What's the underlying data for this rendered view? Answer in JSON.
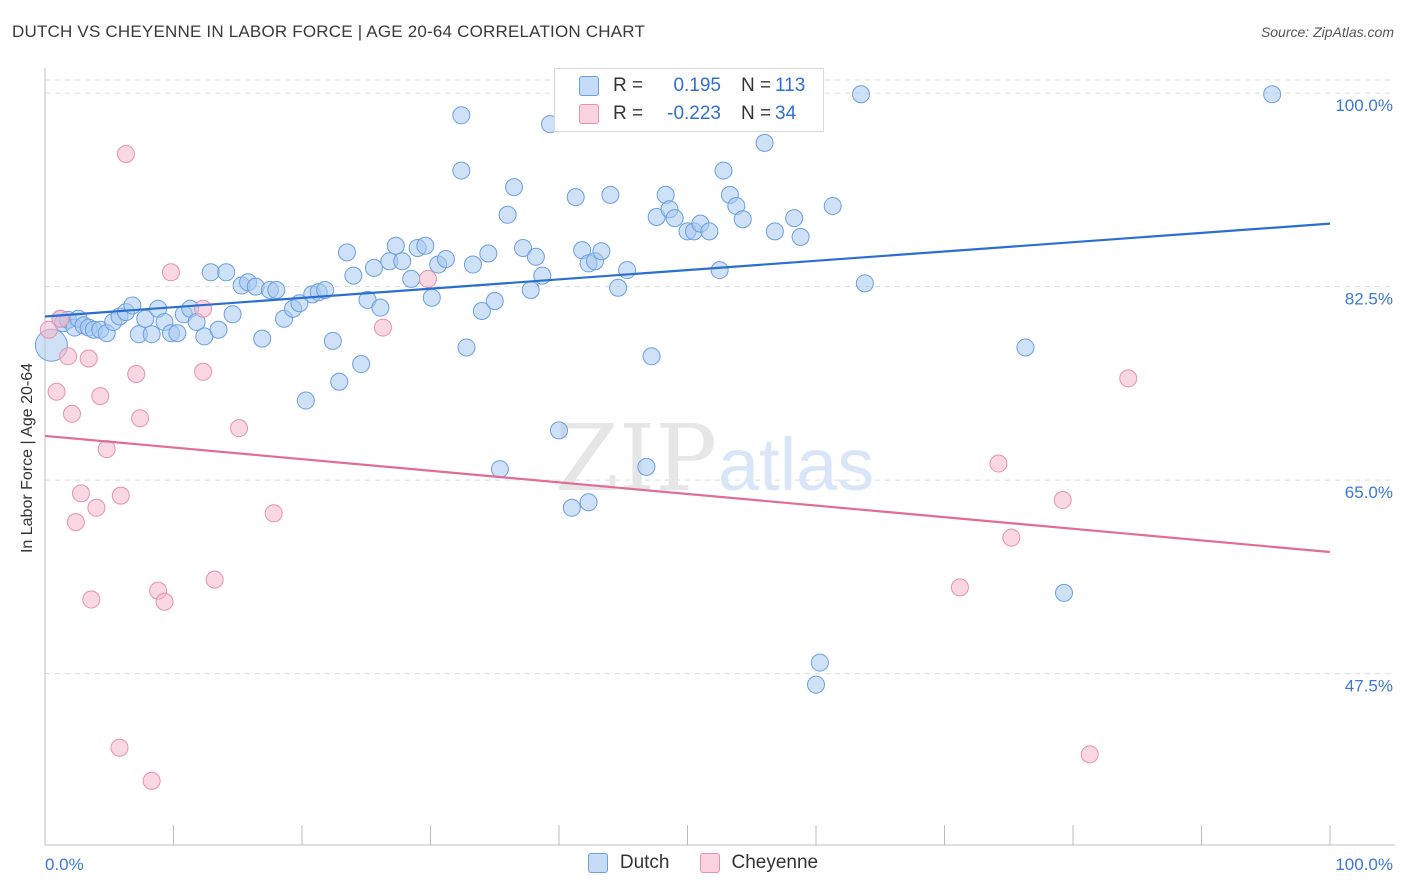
{
  "title": "DUTCH VS CHEYENNE IN LABOR FORCE | AGE 20-64 CORRELATION CHART",
  "source": "Source: ZipAtlas.com",
  "watermark": {
    "zip": "ZIP",
    "atlas": "atlas"
  },
  "legend_top": [
    {
      "r_label": "R =",
      "r_value": "0.195",
      "n_label": "N =",
      "n_value": "113",
      "color": "#a8c8f0"
    },
    {
      "r_label": "R =",
      "r_value": "-0.223",
      "n_label": "N =",
      "n_value": "34",
      "color": "#f5b8cc"
    }
  ],
  "legend_bottom": [
    {
      "label": "Dutch",
      "color": "#a8c8f0"
    },
    {
      "label": "Cheyenne",
      "color": "#f5b8cc"
    }
  ],
  "chart_data": {
    "type": "scatter",
    "title": "DUTCH VS CHEYENNE IN LABOR FORCE | AGE 20-64 CORRELATION CHART",
    "xlabel": "",
    "ylabel": "In Labor Force | Age 20-64",
    "xlim": [
      0,
      100
    ],
    "ylim": [
      32,
      103
    ],
    "x_tick_labels": [
      "0.0%",
      "100.0%"
    ],
    "y_ticks": [
      47.5,
      65.0,
      82.5,
      100.0
    ],
    "y_tick_labels": [
      "47.5%",
      "65.0%",
      "82.5%",
      "100.0%"
    ],
    "grid": true,
    "legend": "top-center",
    "colors": {
      "dutch_fill": "#a8c8f0",
      "dutch_stroke": "#6a9fe0",
      "dutch_line": "#2a6fd0",
      "cheyenne_fill": "#f5b8cc",
      "cheyenne_stroke": "#e890ae",
      "cheyenne_line": "#e06c98",
      "axis_text": "#3b78d8"
    },
    "series": [
      {
        "name": "Dutch",
        "trend": {
          "x": [
            0,
            100
          ],
          "y": [
            79.8,
            88.2
          ]
        },
        "points": [
          [
            0.5,
            77.2
          ],
          [
            1.2,
            79.6
          ],
          [
            1.4,
            79.2
          ],
          [
            1.8,
            79.5
          ],
          [
            2.3,
            78.8
          ],
          [
            2.6,
            79.6
          ],
          [
            3.0,
            79.0
          ],
          [
            3.4,
            78.8
          ],
          [
            3.8,
            78.6
          ],
          [
            4.3,
            78.6
          ],
          [
            4.8,
            78.3
          ],
          [
            5.3,
            79.3
          ],
          [
            5.8,
            79.8
          ],
          [
            6.3,
            80.2
          ],
          [
            6.8,
            80.8
          ],
          [
            7.3,
            78.2
          ],
          [
            7.8,
            79.6
          ],
          [
            8.3,
            78.2
          ],
          [
            8.8,
            80.5
          ],
          [
            9.3,
            79.3
          ],
          [
            9.8,
            78.3
          ],
          [
            10.3,
            78.3
          ],
          [
            10.8,
            80.0
          ],
          [
            11.3,
            80.5
          ],
          [
            11.8,
            79.3
          ],
          [
            12.4,
            78.0
          ],
          [
            12.9,
            83.8
          ],
          [
            13.5,
            78.6
          ],
          [
            14.1,
            83.8
          ],
          [
            14.6,
            80.0
          ],
          [
            15.3,
            82.6
          ],
          [
            15.8,
            82.9
          ],
          [
            16.4,
            82.5
          ],
          [
            16.9,
            77.8
          ],
          [
            17.5,
            82.2
          ],
          [
            18.0,
            82.2
          ],
          [
            18.6,
            79.6
          ],
          [
            19.3,
            80.5
          ],
          [
            19.8,
            81.0
          ],
          [
            20.3,
            72.2
          ],
          [
            20.8,
            81.8
          ],
          [
            21.3,
            82.0
          ],
          [
            21.8,
            82.2
          ],
          [
            22.4,
            77.6
          ],
          [
            22.9,
            73.9
          ],
          [
            23.5,
            85.6
          ],
          [
            24.0,
            83.5
          ],
          [
            24.6,
            75.5
          ],
          [
            25.1,
            81.3
          ],
          [
            25.6,
            84.2
          ],
          [
            26.1,
            80.6
          ],
          [
            26.8,
            84.8
          ],
          [
            27.3,
            86.2
          ],
          [
            27.8,
            84.8
          ],
          [
            28.5,
            83.2
          ],
          [
            29.0,
            86.0
          ],
          [
            29.6,
            86.2
          ],
          [
            30.1,
            81.5
          ],
          [
            30.6,
            84.5
          ],
          [
            31.2,
            85.0
          ],
          [
            32.4,
            93.0
          ],
          [
            32.8,
            77.0
          ],
          [
            33.3,
            84.5
          ],
          [
            34.0,
            80.3
          ],
          [
            34.5,
            85.5
          ],
          [
            35.0,
            81.2
          ],
          [
            35.4,
            66.0
          ],
          [
            36.0,
            89.0
          ],
          [
            36.5,
            91.5
          ],
          [
            37.2,
            86.0
          ],
          [
            37.8,
            82.2
          ],
          [
            38.2,
            85.2
          ],
          [
            38.7,
            83.5
          ],
          [
            39.3,
            97.2
          ],
          [
            40.0,
            69.5
          ],
          [
            41.0,
            62.5
          ],
          [
            41.3,
            90.6
          ],
          [
            41.8,
            85.8
          ],
          [
            42.3,
            84.6
          ],
          [
            42.8,
            84.8
          ],
          [
            43.3,
            85.7
          ],
          [
            44.0,
            90.8
          ],
          [
            44.6,
            82.4
          ],
          [
            45.3,
            84.0
          ],
          [
            46.8,
            66.2
          ],
          [
            47.2,
            76.2
          ],
          [
            47.6,
            88.8
          ],
          [
            48.3,
            90.8
          ],
          [
            48.6,
            89.5
          ],
          [
            49.0,
            88.7
          ],
          [
            50.0,
            87.5
          ],
          [
            50.5,
            87.5
          ],
          [
            51.0,
            88.2
          ],
          [
            51.7,
            87.5
          ],
          [
            52.5,
            84.0
          ],
          [
            52.8,
            93.0
          ],
          [
            53.3,
            90.8
          ],
          [
            53.8,
            89.8
          ],
          [
            54.3,
            88.6
          ],
          [
            56.8,
            87.5
          ],
          [
            58.3,
            88.7
          ],
          [
            58.8,
            87.0
          ],
          [
            61.3,
            89.8
          ],
          [
            63.8,
            82.8
          ],
          [
            76.3,
            77.0
          ],
          [
            79.3,
            54.8
          ],
          [
            60.3,
            48.5
          ],
          [
            60.0,
            46.5
          ],
          [
            32.4,
            98.0
          ],
          [
            42.3,
            63.0
          ],
          [
            63.5,
            99.9
          ],
          [
            95.5,
            99.9
          ],
          [
            56.0,
            95.5
          ]
        ]
      },
      {
        "name": "Cheyenne",
        "trend": {
          "x": [
            0,
            100
          ],
          "y": [
            69.0,
            58.5
          ]
        },
        "points": [
          [
            0.3,
            78.6
          ],
          [
            0.9,
            73.0
          ],
          [
            1.2,
            79.6
          ],
          [
            1.8,
            76.2
          ],
          [
            2.1,
            71.0
          ],
          [
            2.4,
            61.2
          ],
          [
            2.8,
            63.8
          ],
          [
            3.4,
            76.0
          ],
          [
            3.6,
            54.2
          ],
          [
            4.0,
            62.5
          ],
          [
            4.3,
            72.6
          ],
          [
            4.8,
            67.8
          ],
          [
            5.8,
            40.8
          ],
          [
            5.9,
            63.6
          ],
          [
            6.3,
            94.5
          ],
          [
            7.1,
            74.6
          ],
          [
            7.4,
            70.6
          ],
          [
            8.3,
            37.8
          ],
          [
            8.8,
            55.0
          ],
          [
            9.3,
            54.0
          ],
          [
            9.8,
            83.8
          ],
          [
            12.3,
            74.8
          ],
          [
            13.2,
            56.0
          ],
          [
            15.1,
            69.7
          ],
          [
            17.8,
            62.0
          ],
          [
            26.3,
            78.8
          ],
          [
            29.8,
            83.2
          ],
          [
            12.3,
            80.5
          ],
          [
            71.2,
            55.3
          ],
          [
            74.2,
            66.5
          ],
          [
            75.2,
            59.8
          ],
          [
            79.2,
            63.2
          ],
          [
            81.3,
            40.2
          ],
          [
            84.3,
            74.2
          ]
        ]
      }
    ]
  }
}
